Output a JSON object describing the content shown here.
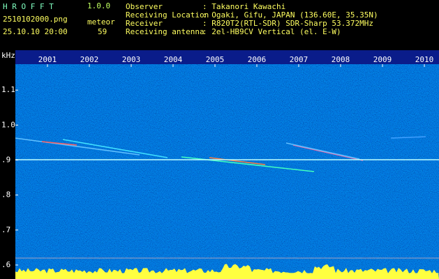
{
  "header": {
    "app": "H R O F F T",
    "version": "1.0.0",
    "file": "2510102000.png",
    "datetime": "25.10.10 20:00",
    "count_label": "meteor",
    "count": "59",
    "info": [
      [
        "Observer",
        ": Takanori Kawachi"
      ],
      [
        "Receiving Location",
        ": Ogaki, Gifu, JAPAN (136.60E, 35.35N)"
      ],
      [
        "Receiver",
        ": R820T2(RTL-SDR) SDR-Sharp 53.372MHz"
      ],
      [
        "Receiving antenna",
        ": 2el-HB9CV Vertical (el. E-W)"
      ]
    ]
  },
  "chart_data": {
    "type": "spectrogram",
    "y_label": "kHz",
    "categories": [
      "2001",
      "2002",
      "2003",
      "2004",
      "2005",
      "2006",
      "2007",
      "2008",
      "2009",
      "2010"
    ],
    "ylim": [
      0.56,
      1.214
    ],
    "yticks": [
      {
        "value": 0.6,
        "label": ".6"
      },
      {
        "value": 0.7,
        "label": ".7"
      },
      {
        "value": 0.8,
        "label": ".8"
      },
      {
        "value": 0.9,
        "label": ".9"
      },
      {
        "value": 1.0,
        "label": "1.0"
      },
      {
        "value": 1.1,
        "label": "1.1"
      }
    ]
  }
}
